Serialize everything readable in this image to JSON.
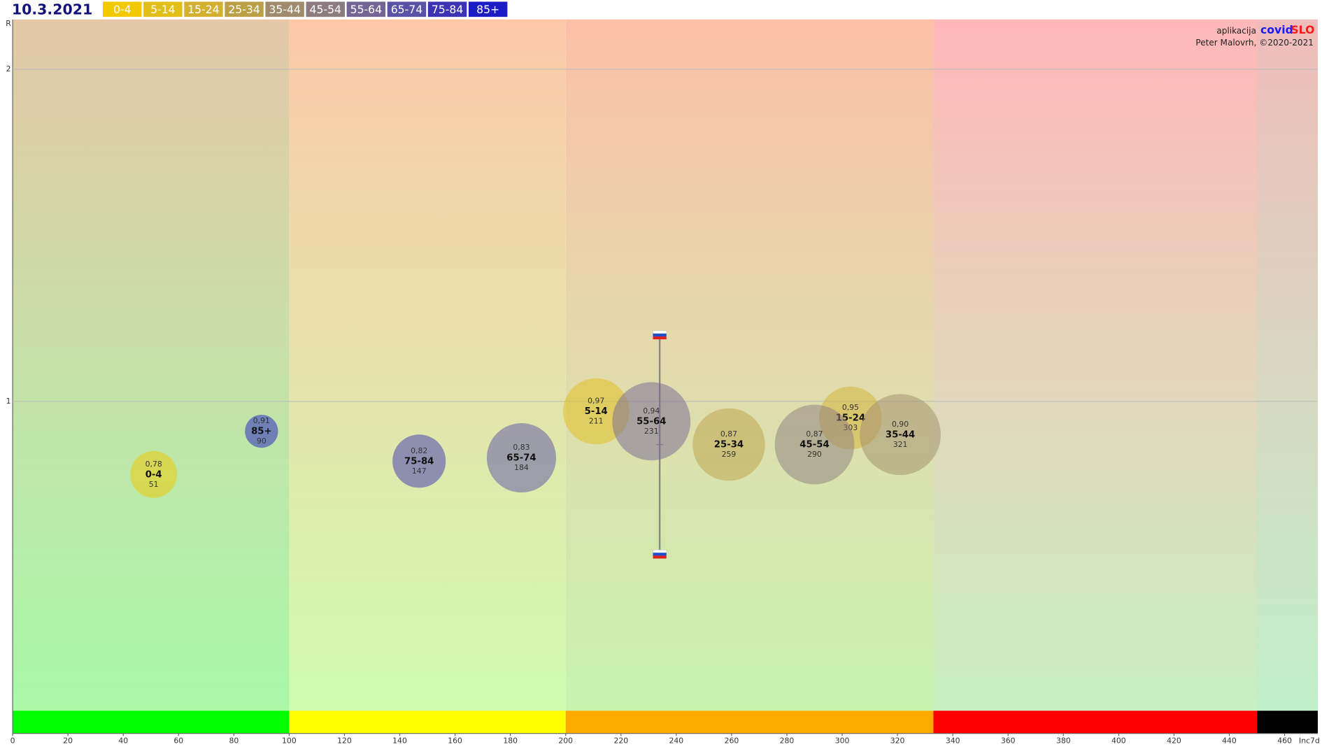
{
  "chart_data": {
    "type": "bubble",
    "date": "10.3.2021",
    "credit_app": "aplikacija",
    "credit_brand_a": "covid",
    "credit_brand_b": "SLO",
    "credit_author": "Peter Malovrh, ©2020-2021",
    "y_label": "R",
    "x_label": "Inc7d",
    "xlim": [
      0,
      472
    ],
    "ylim": [
      0,
      2.15
    ],
    "xticks": [
      0,
      20,
      40,
      60,
      80,
      100,
      120,
      140,
      160,
      180,
      200,
      220,
      240,
      260,
      280,
      300,
      320,
      340,
      360,
      380,
      400,
      420,
      440,
      460
    ],
    "yticks": [
      1,
      2
    ],
    "grid": true,
    "zones": [
      {
        "from": 0,
        "to": 100,
        "color": "#00ff00",
        "top": "#e4c8a8",
        "bottom": "#a8f8a8"
      },
      {
        "from": 100,
        "to": 200,
        "color": "#ffff00",
        "top": "#fcc8a8",
        "bottom": "#d0fcb0"
      },
      {
        "from": 200,
        "to": 333,
        "color": "#ffaa00",
        "top": "#fcc0a8",
        "bottom": "#c8f4b0"
      },
      {
        "from": 333,
        "to": 450,
        "color": "#ff0000",
        "top": "#ffb8b8",
        "bottom": "#c8f0c0"
      },
      {
        "from": 450,
        "to": 472,
        "color": "#000000",
        "top": "#f0bcbc",
        "bottom": "#c0f0c8"
      }
    ],
    "overall": {
      "x": 234,
      "high": 1.2,
      "low": 0.54,
      "center": 0.87
    },
    "series": [
      {
        "name": "0-4",
        "color": "#f2c800",
        "x": 51,
        "value": 0.78,
        "value_label": "0,78",
        "size": 100
      },
      {
        "name": "5-14",
        "color": "#e2be18",
        "x": 211,
        "value": 0.97,
        "value_label": "0,97",
        "size": 200
      },
      {
        "name": "15-24",
        "color": "#d4b030",
        "x": 303,
        "value": 0.95,
        "value_label": "0,95",
        "size": 180
      },
      {
        "name": "25-34",
        "color": "#bca048",
        "x": 259,
        "value": 0.87,
        "value_label": "0,87",
        "size": 240
      },
      {
        "name": "35-44",
        "color": "#a08c6c",
        "x": 321,
        "value": 0.9,
        "value_label": "0,90",
        "size": 300
      },
      {
        "name": "45-54",
        "color": "#8c7c80",
        "x": 290,
        "value": 0.87,
        "value_label": "0,87",
        "size": 290
      },
      {
        "name": "55-64",
        "color": "#746694",
        "x": 231,
        "value": 0.94,
        "value_label": "0,94",
        "size": 280
      },
      {
        "name": "65-74",
        "color": "#5a52a6",
        "x": 184,
        "value": 0.83,
        "value_label": "0,83",
        "size": 220
      },
      {
        "name": "75-84",
        "color": "#3c34b4",
        "x": 147,
        "value": 0.82,
        "value_label": "0,82",
        "size": 130
      },
      {
        "name": "85+",
        "color": "#1c1cc4",
        "x": 90,
        "value": 0.91,
        "value_label": "0,91",
        "size": 50
      }
    ]
  }
}
